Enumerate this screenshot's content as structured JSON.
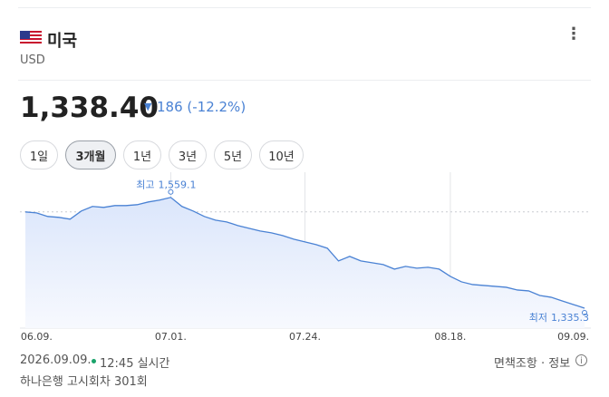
{
  "header": {
    "title": "미국",
    "subtitle": "USD"
  },
  "price": {
    "value": "1,338.40",
    "change": "186 (-12.2%)"
  },
  "tabs": [
    {
      "label": "1일",
      "selected": false
    },
    {
      "label": "3개월",
      "selected": true
    },
    {
      "label": "1년",
      "selected": false
    },
    {
      "label": "3년",
      "selected": false
    },
    {
      "label": "5년",
      "selected": false
    },
    {
      "label": "10년",
      "selected": false
    }
  ],
  "chart_data": {
    "type": "line",
    "color": "#4a82d4",
    "categories": [
      null,
      "06.09.",
      null,
      null,
      null,
      null,
      null,
      null,
      null,
      null,
      null,
      null,
      null,
      "07.01.",
      null,
      null,
      null,
      null,
      null,
      null,
      null,
      null,
      null,
      null,
      null,
      "07.24.",
      null,
      null,
      null,
      null,
      null,
      null,
      null,
      null,
      null,
      null,
      null,
      null,
      "08.18.",
      null,
      null,
      null,
      null,
      null,
      null,
      null,
      null,
      null,
      null,
      "09.09.",
      null
    ],
    "values": [
      1529.8,
      1527.9,
      1520.6,
      1518.8,
      1515.1,
      1531.6,
      1540.8,
      1538.9,
      1542.6,
      1542.6,
      1544.4,
      1549.9,
      1553.6,
      1559.1,
      1540.8,
      1531.6,
      1520.6,
      1513.2,
      1509.6,
      1502.2,
      1496.7,
      1491.2,
      1487.6,
      1482.1,
      1474.7,
      1469.2,
      1463.7,
      1456.4,
      1430.7,
      1439.9,
      1430.7,
      1427.1,
      1423.4,
      1414.2,
      1419.7,
      1416.1,
      1417.9,
      1414.2,
      1399.5,
      1388.5,
      1383.0,
      1381.2,
      1379.4,
      1377.5,
      1372.0,
      1370.2,
      1361.0,
      1357.4,
      1350.0,
      1342.7,
      1335.3
    ],
    "ylim": [
      1295,
      1610
    ],
    "annotations": {
      "high": {
        "label": "최고",
        "value_label": "1,559.1"
      },
      "low": {
        "label": "최저",
        "value_label": "1,335.3"
      }
    }
  },
  "footer": {
    "date": "2026.09.09.",
    "time": "12:45 실시간",
    "disclaimer": "면책조항 · 정보",
    "source": "하나은행 고시회차 301회"
  }
}
